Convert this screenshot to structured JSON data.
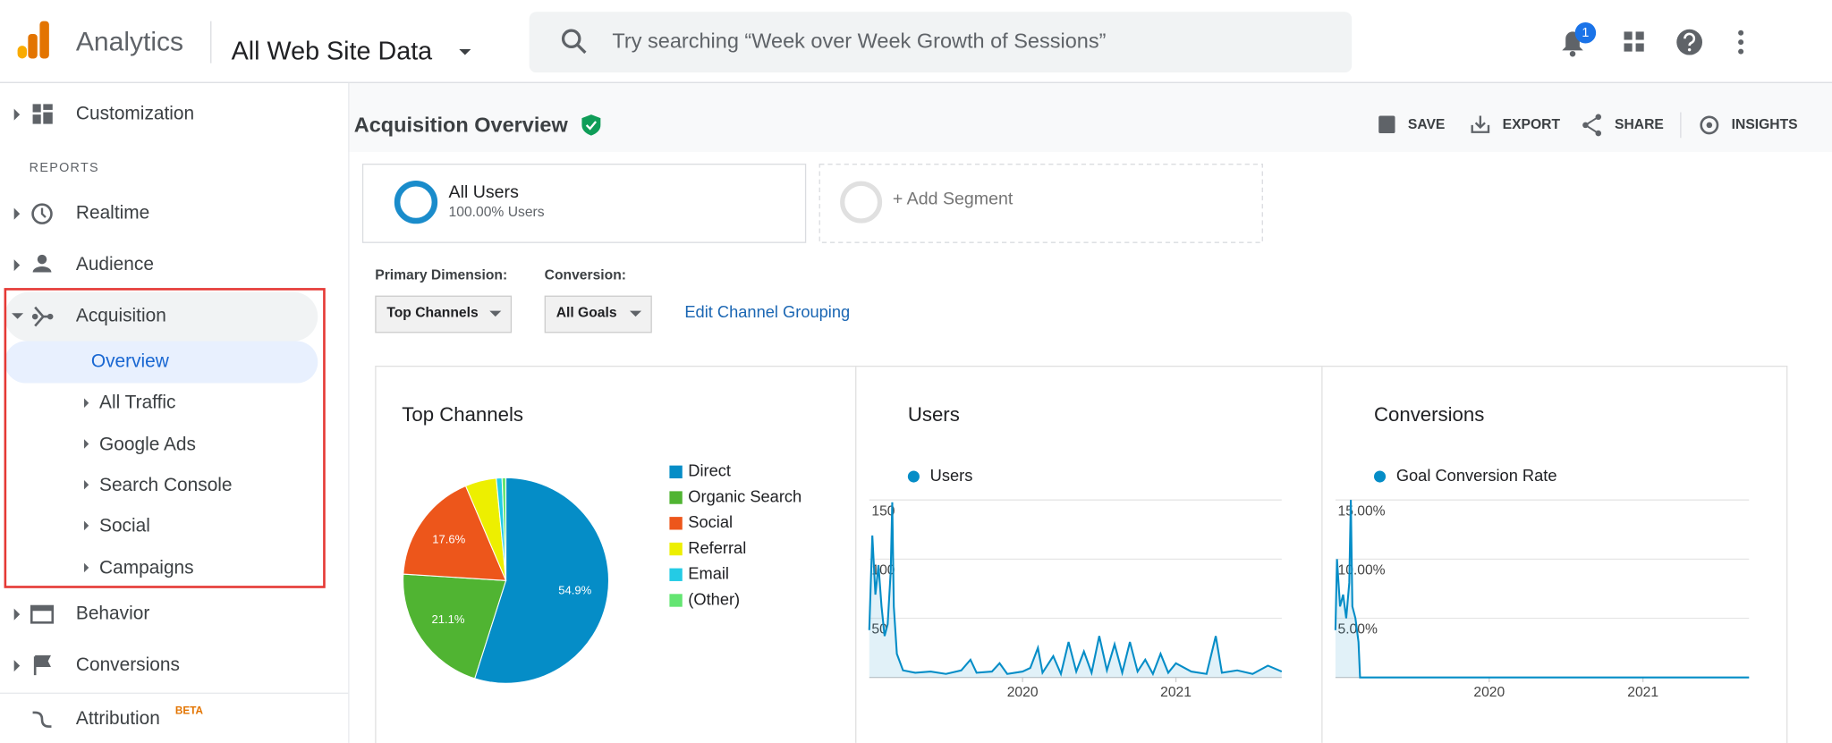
{
  "header": {
    "product": "Analytics",
    "property": "All Web Site Data",
    "search_placeholder": "Try searching “Week over Week Growth of Sessions”",
    "notification_count": "1"
  },
  "sidebar": {
    "customization": "Customization",
    "section_label": "REPORTS",
    "reports": [
      "Realtime",
      "Audience",
      "Acquisition"
    ],
    "acquisition_children": [
      "Overview",
      "All Traffic",
      "Google Ads",
      "Search Console",
      "Social",
      "Campaigns"
    ],
    "more_reports": [
      "Behavior",
      "Conversions"
    ],
    "attribution": "Attribution",
    "attribution_badge": "BETA"
  },
  "page": {
    "title": "Acquisition Overview",
    "actions": [
      "SAVE",
      "EXPORT",
      "SHARE",
      "INSIGHTS"
    ]
  },
  "segments": {
    "active_name": "All Users",
    "active_detail": "100.00% Users",
    "add": "+ Add Segment"
  },
  "controls": {
    "primary_dimension_label": "Primary Dimension:",
    "primary_dimension_value": "Top Channels",
    "conversion_label": "Conversion:",
    "conversion_value": "All Goals",
    "link": "Edit Channel Grouping"
  },
  "chart_data": [
    {
      "type": "pie",
      "title": "Top Channels",
      "categories": [
        "Direct",
        "Organic Search",
        "Social",
        "Referral",
        "Email",
        "(Other)"
      ],
      "values": [
        54.9,
        21.1,
        17.6,
        4.9,
        0.9,
        0.6
      ],
      "value_labels": [
        "54.9%",
        "21.1%",
        "17.6%",
        null,
        null,
        null
      ],
      "colors": [
        "#058dc7",
        "#50b432",
        "#ed561b",
        "#edef00",
        "#24cbe5",
        "#64e572"
      ]
    },
    {
      "type": "line",
      "title": "Users",
      "x": [
        2019.0,
        2019.02,
        2019.04,
        2019.06,
        2019.08,
        2019.1,
        2019.12,
        2019.14,
        2019.15,
        2019.16,
        2019.18,
        2019.22,
        2019.3,
        2019.4,
        2019.5,
        2019.6,
        2019.66,
        2019.7,
        2019.8,
        2019.85,
        2019.9,
        2020.0,
        2020.05,
        2020.1,
        2020.13,
        2020.2,
        2020.25,
        2020.3,
        2020.35,
        2020.4,
        2020.45,
        2020.5,
        2020.55,
        2020.6,
        2020.65,
        2020.7,
        2020.75,
        2020.8,
        2020.85,
        2020.9,
        2020.95,
        2021.0,
        2021.1,
        2021.2,
        2021.26,
        2021.3,
        2021.4,
        2021.5,
        2021.6,
        2021.69
      ],
      "series": [
        {
          "name": "Users",
          "color": "#058dc7",
          "values": [
            40,
            120,
            70,
            95,
            60,
            35,
            45,
            90,
            148,
            60,
            20,
            6,
            4,
            5,
            3,
            6,
            15,
            4,
            5,
            12,
            3,
            5,
            8,
            25,
            4,
            18,
            3,
            30,
            5,
            22,
            4,
            35,
            6,
            28,
            4,
            30,
            5,
            15,
            3,
            20,
            4,
            12,
            5,
            3,
            35,
            4,
            6,
            3,
            10,
            5
          ]
        }
      ],
      "xlim": [
        2019.0,
        2021.69
      ],
      "xticks": [
        2020,
        2021
      ],
      "ylim": [
        0,
        150
      ],
      "yticks": [
        50,
        100,
        150
      ],
      "grid": true
    },
    {
      "type": "line",
      "title": "Conversions",
      "x": [
        2019.0,
        2019.01,
        2019.03,
        2019.05,
        2019.07,
        2019.09,
        2019.1,
        2019.11,
        2019.13,
        2019.15,
        2019.16,
        2020.0,
        2021.0,
        2021.69
      ],
      "series": [
        {
          "name": "Goal Conversion Rate",
          "color": "#058dc7",
          "values": [
            4,
            10,
            6,
            7,
            5,
            8,
            15,
            6,
            5,
            3,
            0,
            0,
            0,
            0
          ]
        }
      ],
      "xlim": [
        2019.0,
        2021.69
      ],
      "xticks": [
        2020,
        2021
      ],
      "ylim": [
        0,
        15
      ],
      "yticks": [
        {
          "value": 5,
          "label": "5.00%"
        },
        {
          "value": 10,
          "label": "10.00%"
        },
        {
          "value": 15,
          "label": "15.00%"
        }
      ],
      "grid": true
    }
  ]
}
